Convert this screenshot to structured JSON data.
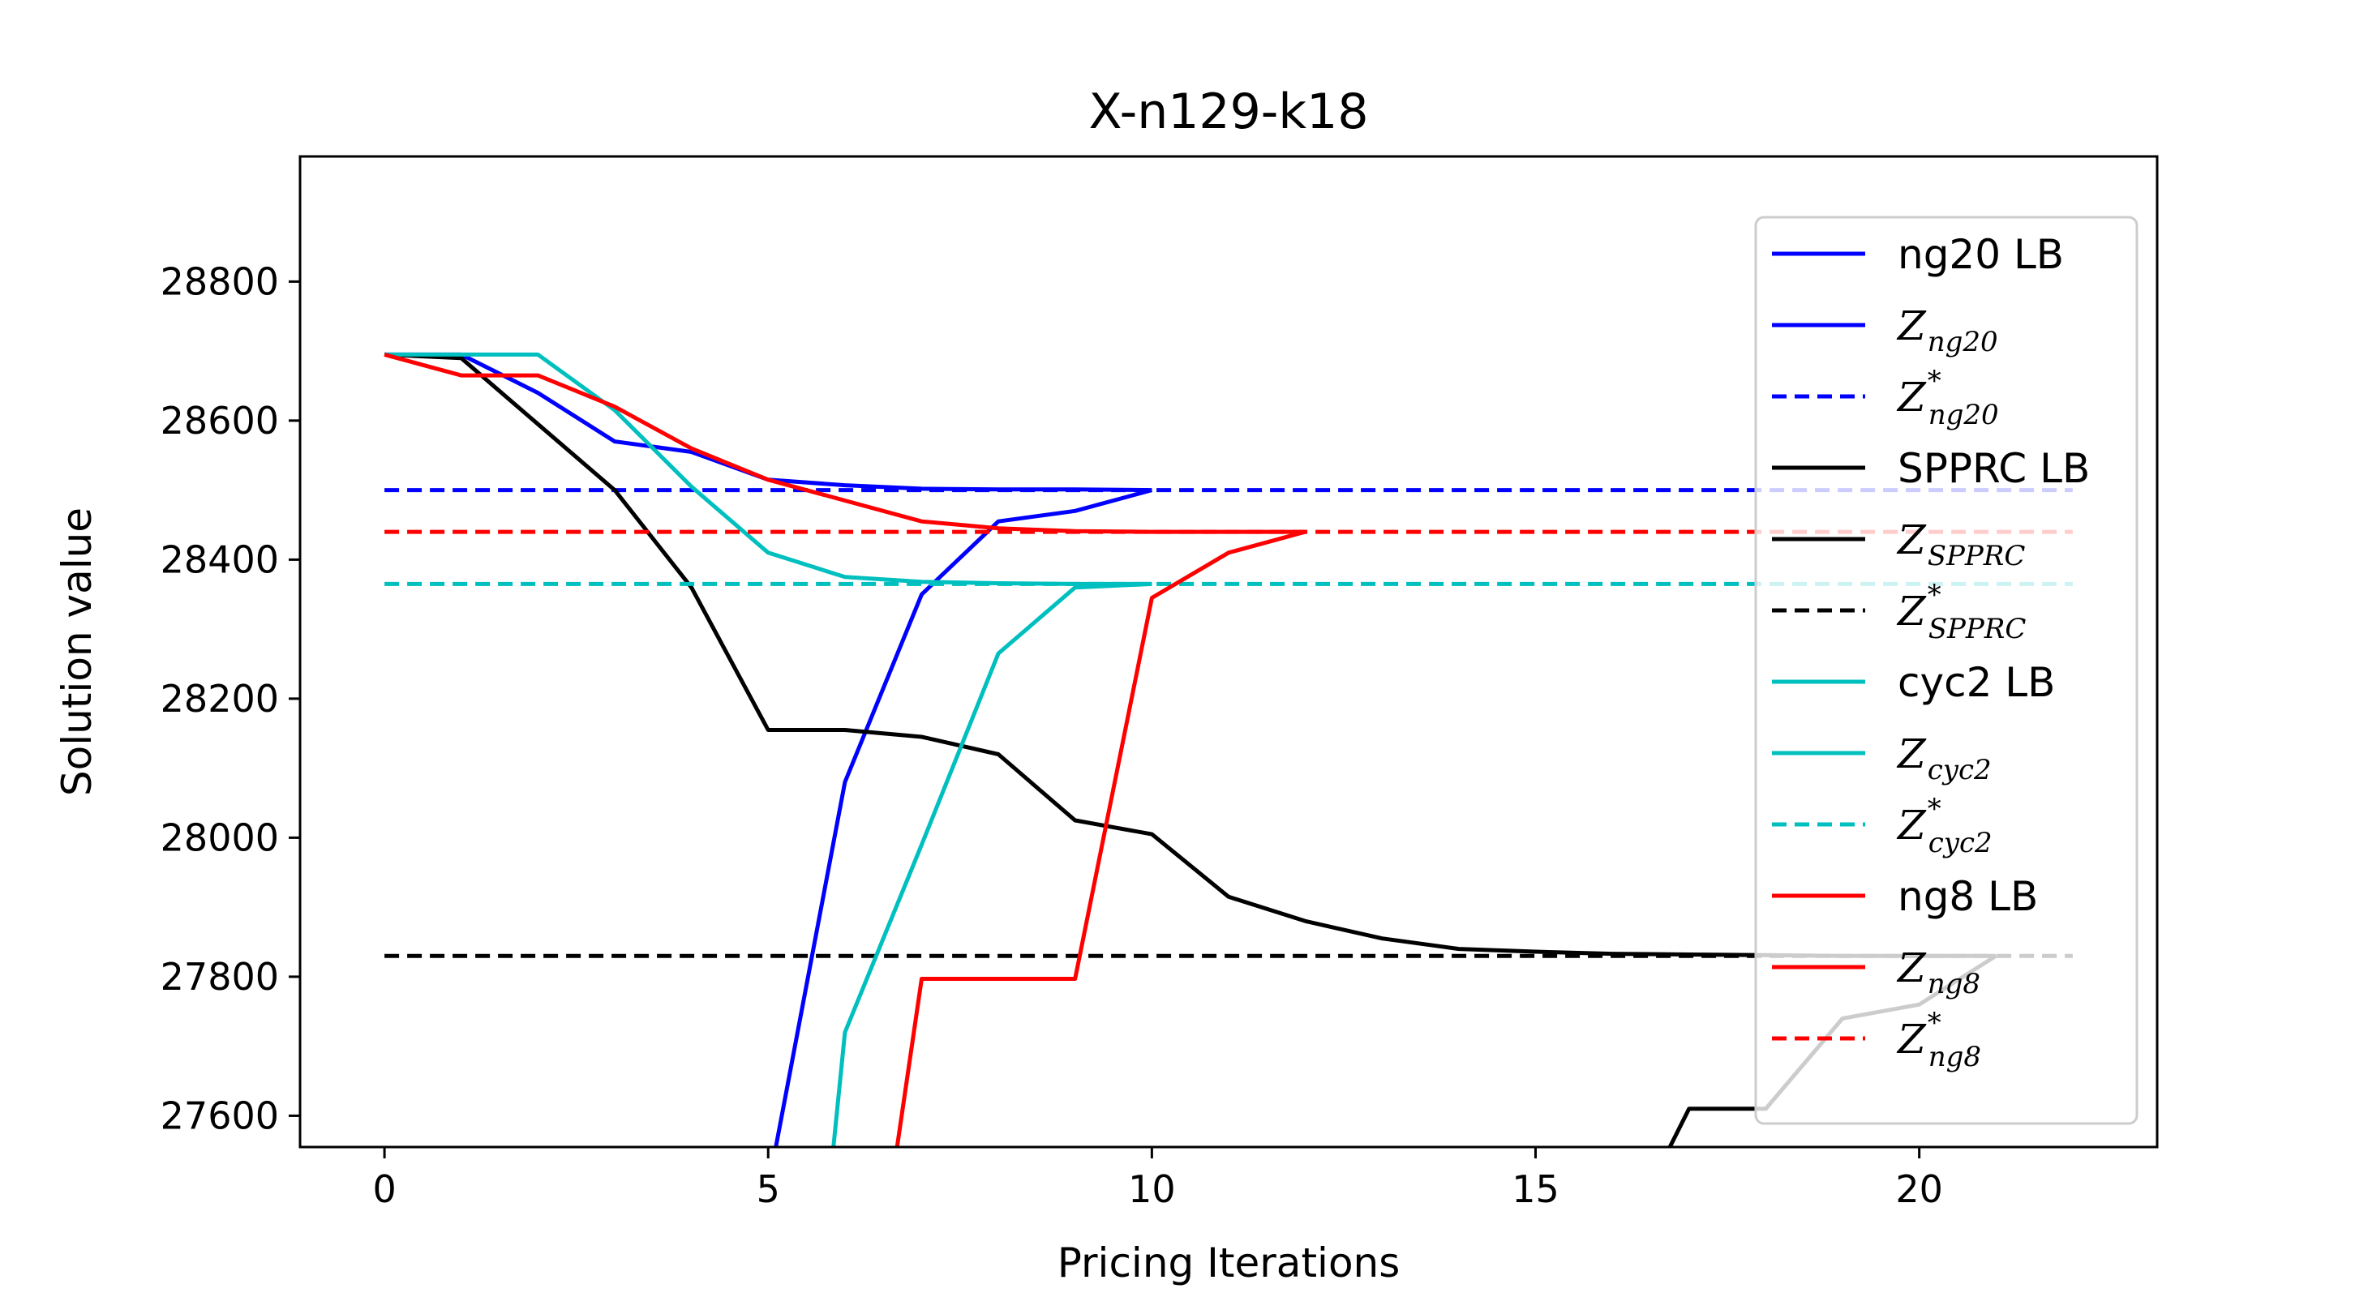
{
  "chart_data": {
    "type": "line",
    "title": "X-n129-k18",
    "xlabel": "Pricing Iterations",
    "ylabel": "Solution value",
    "xlim": [
      -1.1,
      23.1
    ],
    "ylim": [
      27555,
      28980
    ],
    "xticks": [
      "0",
      "5",
      "10",
      "15",
      "20"
    ],
    "xtick_values": [
      0,
      5,
      10,
      15,
      20
    ],
    "yticks": [
      "27600",
      "27800",
      "28000",
      "28200",
      "28400",
      "28600",
      "28800"
    ],
    "ytick_values": [
      27600,
      27800,
      28000,
      28200,
      28400,
      28600,
      28800
    ],
    "grid": false,
    "legend_position": "right",
    "colors": {
      "ng20": "#0000ff",
      "SPPRC": "#000000",
      "cyc2": "#00bfbf",
      "ng8": "#ff0000"
    },
    "series": [
      {
        "name": "ng20 LB",
        "legend_base": "ng20 LB",
        "legend_sub": "",
        "legend_star": false,
        "color": "#0000ff",
        "dash": "solid",
        "x": [
          5.1,
          6,
          7,
          8,
          9,
          10
        ],
        "y": [
          27555,
          28080,
          28350,
          28455,
          28470,
          28500
        ]
      },
      {
        "name": "Z_ng20",
        "legend_base": "Z",
        "legend_sub": "ng20",
        "legend_star": false,
        "color": "#0000ff",
        "dash": "solid",
        "x": [
          0,
          1,
          2,
          3,
          4,
          5,
          6,
          7,
          8,
          9,
          10
        ],
        "y": [
          28695,
          28695,
          28640,
          28570,
          28555,
          28515,
          28507,
          28502,
          28501,
          28501,
          28500
        ]
      },
      {
        "name": "Z*_ng20",
        "legend_base": "Z",
        "legend_sub": "ng20",
        "legend_star": true,
        "color": "#0000ff",
        "dash": "dashed",
        "x": [
          0,
          22
        ],
        "y": [
          28500,
          28500
        ]
      },
      {
        "name": "SPPRC LB",
        "legend_base": "SPPRC LB",
        "legend_sub": "",
        "legend_star": false,
        "color": "#000000",
        "dash": "solid",
        "x": [
          16.75,
          17,
          18,
          19,
          20,
          21
        ],
        "y": [
          27555,
          27610,
          27610,
          27740,
          27760,
          27830
        ]
      },
      {
        "name": "Z_SPPRC",
        "legend_base": "Z",
        "legend_sub": "SPPRC",
        "legend_star": false,
        "color": "#000000",
        "dash": "solid",
        "x": [
          0,
          1,
          2,
          3,
          4,
          5,
          6,
          7,
          8,
          9,
          10,
          11,
          12,
          13,
          14,
          15,
          16,
          17,
          18,
          19,
          20,
          21
        ],
        "y": [
          28695,
          28690,
          28595,
          28500,
          28360,
          28155,
          28155,
          28145,
          28120,
          28025,
          28005,
          27915,
          27880,
          27855,
          27840,
          27836,
          27833,
          27832,
          27831,
          27830,
          27830,
          27830
        ]
      },
      {
        "name": "Z*_SPPRC",
        "legend_base": "Z",
        "legend_sub": "SPPRC",
        "legend_star": true,
        "color": "#000000",
        "dash": "dashed",
        "x": [
          0,
          22
        ],
        "y": [
          27830,
          27830
        ]
      },
      {
        "name": "cyc2 LB",
        "legend_base": "cyc2 LB",
        "legend_sub": "",
        "legend_star": false,
        "color": "#00bfbf",
        "dash": "solid",
        "x": [
          5.85,
          6,
          7,
          8,
          9,
          10
        ],
        "y": [
          27555,
          27720,
          27990,
          28265,
          28360,
          28365
        ]
      },
      {
        "name": "Z_cyc2",
        "legend_base": "Z",
        "legend_sub": "cyc2",
        "legend_star": false,
        "color": "#00bfbf",
        "dash": "solid",
        "x": [
          0,
          1,
          2,
          3,
          4,
          5,
          6,
          7,
          8,
          9,
          10
        ],
        "y": [
          28695,
          28695,
          28695,
          28615,
          28505,
          28410,
          28375,
          28368,
          28366,
          28365,
          28365
        ]
      },
      {
        "name": "Z*_cyc2",
        "legend_base": "Z",
        "legend_sub": "cyc2",
        "legend_star": true,
        "color": "#00bfbf",
        "dash": "dashed",
        "x": [
          0,
          22
        ],
        "y": [
          28365,
          28365
        ]
      },
      {
        "name": "ng8 LB",
        "legend_base": "ng8 LB",
        "legend_sub": "",
        "legend_star": false,
        "color": "#ff0000",
        "dash": "solid",
        "x": [
          6.68,
          7,
          8,
          9,
          10,
          11,
          12
        ],
        "y": [
          27555,
          27797,
          27797,
          27797,
          28345,
          28410,
          28440
        ]
      },
      {
        "name": "Z_ng8",
        "legend_base": "Z",
        "legend_sub": "ng8",
        "legend_star": false,
        "color": "#ff0000",
        "dash": "solid",
        "x": [
          0,
          1,
          2,
          3,
          4,
          5,
          6,
          7,
          8,
          9,
          10,
          11,
          12
        ],
        "y": [
          28695,
          28665,
          28665,
          28620,
          28560,
          28515,
          28485,
          28455,
          28445,
          28441,
          28440,
          28440,
          28440
        ]
      },
      {
        "name": "Z*_ng8",
        "legend_base": "Z",
        "legend_sub": "ng8",
        "legend_star": true,
        "color": "#ff0000",
        "dash": "dashed",
        "x": [
          0,
          22
        ],
        "y": [
          28440,
          28440
        ]
      }
    ]
  }
}
